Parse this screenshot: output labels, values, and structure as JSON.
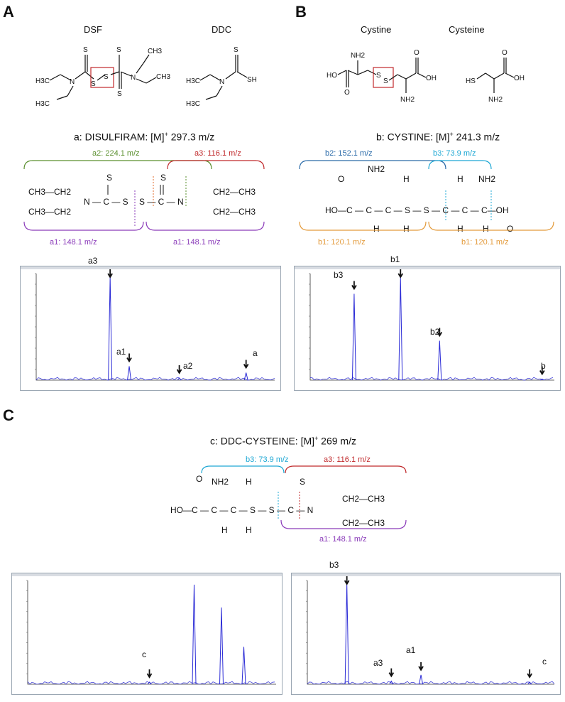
{
  "panels": {
    "A": {
      "letter": "A",
      "mol1": "DSF",
      "mol2": "DDC",
      "title_main": "a: DISULFIRAM: [M]",
      "title_sup": "+",
      "title_rest": " 297.3 m/z",
      "frag_a2": "a2: 224.1 m/z",
      "frag_a3": "a3: 116.1 m/z",
      "frag_a1_left": "a1: 148.1 m/z",
      "frag_a1_right": "a1: 148.1 m/z",
      "peaks": {
        "a3": "a3",
        "a1": "a1",
        "a2": "a2",
        "a": "a"
      }
    },
    "B": {
      "letter": "B",
      "mol1": "Cystine",
      "mol2": "Cysteine",
      "title_main": "b: CYSTINE: [M]",
      "title_sup": "+",
      "title_rest": " 241.3 m/z",
      "frag_b2": "b2: 152.1 m/z",
      "frag_b3": "b3: 73.9 m/z",
      "frag_b1_left": "b1: 120.1 m/z",
      "frag_b1_right": "b1: 120.1 m/z",
      "peaks": {
        "b3": "b3",
        "b1": "b1",
        "b2": "b2",
        "b": "b"
      }
    },
    "C": {
      "letter": "C",
      "title_main": "c: DDC-CYSTEINE: [M]",
      "title_sup": "+",
      "title_rest": " 269 m/z",
      "frag_b3": "b3: 73.9 m/z",
      "frag_a3": "a3: 116.1 m/z",
      "frag_a1": "a1: 148.1 m/z",
      "peaks_left": {
        "c": "c"
      },
      "peaks_right": {
        "b3": "b3",
        "a3": "a3",
        "a1": "a1",
        "c": "c"
      }
    }
  },
  "colors": {
    "green": "#5a8f2e",
    "red": "#c0292b",
    "purple": "#8a3ab9",
    "blue": "#2a6aa8",
    "cyan": "#1fa8d4",
    "orange": "#e39a3a",
    "trace": "#2b2bd6"
  },
  "chart_data": [
    {
      "type": "line",
      "title": "",
      "peaks_relative": [
        {
          "label": "a3",
          "x": 0.31,
          "y": 0.97
        },
        {
          "label": "a1",
          "x": 0.39,
          "y": 0.13
        },
        {
          "label": "a2",
          "x": 0.6,
          "y": 0.02
        },
        {
          "label": "a",
          "x": 0.88,
          "y": 0.07
        }
      ]
    },
    {
      "type": "line",
      "title": "",
      "peaks_relative": [
        {
          "label": "b3",
          "x": 0.18,
          "y": 0.81
        },
        {
          "label": "b1",
          "x": 0.37,
          "y": 0.96
        },
        {
          "label": "b2",
          "x": 0.53,
          "y": 0.37
        },
        {
          "label": "b",
          "x": 0.95,
          "y": 0.01
        }
      ]
    },
    {
      "type": "line",
      "title": "",
      "peaks_relative": [
        {
          "label": "c",
          "x": 0.49,
          "y": 0.02
        },
        {
          "x": 0.67,
          "y": 0.96
        },
        {
          "x": 0.78,
          "y": 0.74
        },
        {
          "x": 0.87,
          "y": 0.36
        }
      ]
    },
    {
      "type": "line",
      "title": "",
      "peaks_relative": [
        {
          "label": "b3",
          "x": 0.16,
          "y": 0.97
        },
        {
          "label": "a3",
          "x": 0.34,
          "y": 0.03
        },
        {
          "label": "a1",
          "x": 0.46,
          "y": 0.09
        },
        {
          "label": "c",
          "x": 0.9,
          "y": 0.02
        }
      ]
    }
  ]
}
